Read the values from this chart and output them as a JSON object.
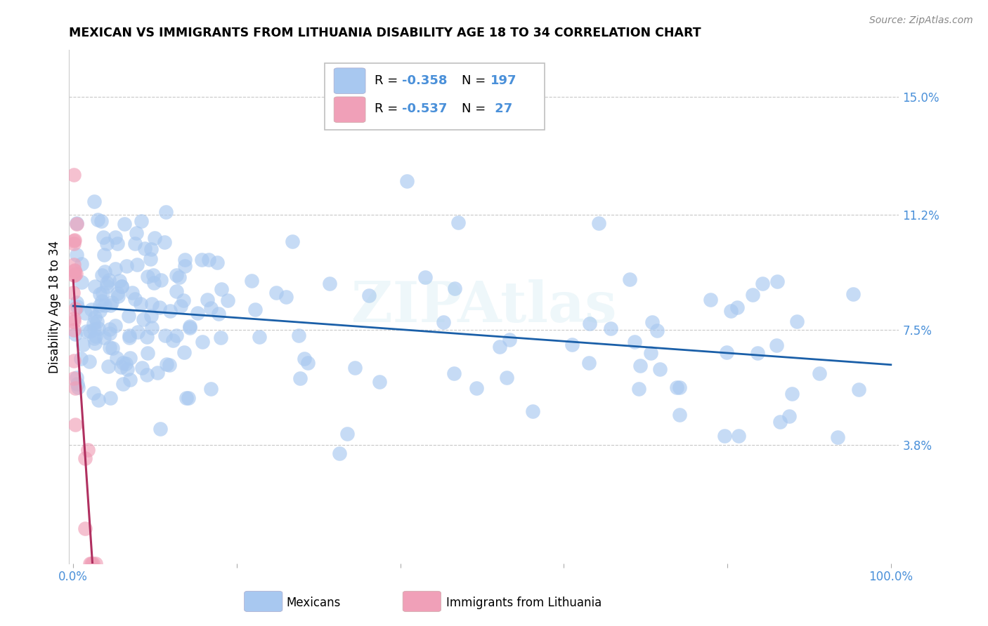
{
  "title": "MEXICAN VS IMMIGRANTS FROM LITHUANIA DISABILITY AGE 18 TO 34 CORRELATION CHART",
  "source": "Source: ZipAtlas.com",
  "ylabel": "Disability Age 18 to 34",
  "ytick_values": [
    0.038,
    0.075,
    0.112,
    0.15
  ],
  "ytick_labels": [
    "3.8%",
    "7.5%",
    "11.2%",
    "15.0%"
  ],
  "xtick_positions": [
    0.0,
    0.2,
    0.4,
    0.6,
    0.8,
    1.0
  ],
  "xtick_labels": [
    "0.0%",
    "",
    "",
    "",
    "",
    "100.0%"
  ],
  "xlim": [
    -0.005,
    1.01
  ],
  "ylim": [
    0.0,
    0.165
  ],
  "watermark": "ZIPAtlas",
  "legend_r_mexican": "-0.358",
  "legend_n_mexican": "197",
  "legend_r_lithuania": "-0.537",
  "legend_n_lithuania": "27",
  "mexican_color": "#a8c8f0",
  "mexican_line_color": "#1a5fa8",
  "lithuania_color": "#f0a0b8",
  "lithuania_line_color": "#b03060",
  "background_color": "#ffffff",
  "grid_color": "#c8c8c8",
  "label_color_blue": "#4a90d9",
  "title_fontsize": 12.5,
  "axis_label_fontsize": 12,
  "tick_fontsize": 12,
  "legend_fontsize": 13,
  "source_fontsize": 10
}
